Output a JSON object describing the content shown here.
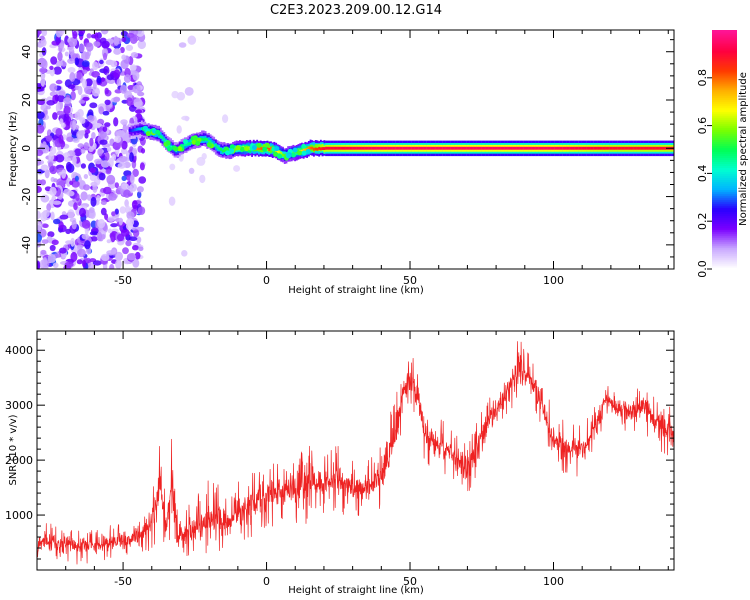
{
  "title": "C2E3.2023.209.00.12.G14",
  "colors": {
    "snr_line": "#ee2222",
    "ridge_core": "#dd2222",
    "frame": "#000000",
    "background": "#ffffff"
  },
  "chart_data": [
    {
      "type": "heatmap",
      "title": "",
      "xlabel": "Height of straight line (km)",
      "ylabel": "Frequency (Hz)",
      "xlim": [
        -80,
        142
      ],
      "ylim": [
        -50,
        49
      ],
      "x_ticks": [
        -50,
        0,
        50,
        100
      ],
      "y_ticks": [
        -40,
        -20,
        0,
        20,
        40
      ],
      "grid": false,
      "colorbar": {
        "label": "Normalized spectral amplitude",
        "range": [
          0.0,
          1.0
        ],
        "ticks": [
          "0.0",
          "0.2",
          "0.4",
          "0.6",
          "0.8"
        ],
        "colormap": [
          "#ffffff",
          "#c9a8ff",
          "#7a00ff",
          "#2a00ff",
          "#00b4ff",
          "#00ffd0",
          "#00ff55",
          "#7aff00",
          "#ffff00",
          "#ffb000",
          "#ff3a00",
          "#ff0040",
          "#ff1493"
        ]
      },
      "ridge": [
        {
          "x": -48,
          "y": 7,
          "amp": 0.25
        },
        {
          "x": -44,
          "y": 8,
          "amp": 0.35
        },
        {
          "x": -41,
          "y": 7,
          "amp": 0.5
        },
        {
          "x": -38,
          "y": 6,
          "amp": 0.5
        },
        {
          "x": -35,
          "y": 2,
          "amp": 0.45
        },
        {
          "x": -32,
          "y": -1,
          "amp": 0.4
        },
        {
          "x": -29,
          "y": 1,
          "amp": 0.45
        },
        {
          "x": -26,
          "y": 3,
          "amp": 0.5
        },
        {
          "x": -22,
          "y": 4,
          "amp": 0.5
        },
        {
          "x": -19,
          "y": 2,
          "amp": 0.45
        },
        {
          "x": -16,
          "y": -1,
          "amp": 0.5
        },
        {
          "x": -13,
          "y": -1,
          "amp": 0.55
        },
        {
          "x": -10,
          "y": 0,
          "amp": 0.6
        },
        {
          "x": -5,
          "y": 0,
          "amp": 0.75
        },
        {
          "x": 0,
          "y": 0,
          "amp": 0.85
        },
        {
          "x": 3,
          "y": -1,
          "amp": 0.7
        },
        {
          "x": 6,
          "y": -3,
          "amp": 0.55
        },
        {
          "x": 9,
          "y": -2,
          "amp": 0.6
        },
        {
          "x": 12,
          "y": -1,
          "amp": 0.7
        },
        {
          "x": 15,
          "y": 0,
          "amp": 0.8
        },
        {
          "x": 20,
          "y": 0,
          "amp": 0.9
        },
        {
          "x": 40,
          "y": 0,
          "amp": 0.95
        },
        {
          "x": 60,
          "y": 0,
          "amp": 0.95
        },
        {
          "x": 80,
          "y": 0,
          "amp": 0.95
        },
        {
          "x": 100,
          "y": 0,
          "amp": 0.95
        },
        {
          "x": 120,
          "y": 0,
          "amp": 0.9
        },
        {
          "x": 142,
          "y": 0,
          "amp": 0.9
        }
      ],
      "noise_regions": [
        {
          "x": [
            -80,
            -43
          ],
          "y": [
            -50,
            49
          ],
          "level": 0.3
        },
        {
          "x": [
            -33,
            -26
          ],
          "y": [
            -50,
            49
          ],
          "level": 0.08
        },
        {
          "x": [
            -25,
            -10
          ],
          "y": [
            -20,
            35
          ],
          "level": 0.05
        }
      ]
    },
    {
      "type": "line",
      "title": "",
      "xlabel": "Height of straight line (km)",
      "ylabel": "SNR (10 * v/v)",
      "xlim": [
        -80,
        142
      ],
      "ylim": [
        0,
        4350
      ],
      "x_ticks": [
        -50,
        0,
        50,
        100
      ],
      "y_ticks": [
        1000,
        2000,
        3000,
        4000
      ],
      "grid": false,
      "series": [
        {
          "color": "#ee2222",
          "envelope": [
            {
              "x": -80,
              "low": 100,
              "high": 900
            },
            {
              "x": -75,
              "low": 100,
              "high": 850
            },
            {
              "x": -70,
              "low": 100,
              "high": 800
            },
            {
              "x": -65,
              "low": 100,
              "high": 800
            },
            {
              "x": -60,
              "low": 120,
              "high": 750
            },
            {
              "x": -55,
              "low": 120,
              "high": 800
            },
            {
              "x": -50,
              "low": 150,
              "high": 900
            },
            {
              "x": -45,
              "low": 200,
              "high": 1000
            },
            {
              "x": -40,
              "low": 250,
              "high": 1400
            },
            {
              "x": -37,
              "low": 600,
              "high": 2600
            },
            {
              "x": -35,
              "low": 200,
              "high": 1200
            },
            {
              "x": -33,
              "low": 700,
              "high": 2600
            },
            {
              "x": -31,
              "low": 250,
              "high": 1000
            },
            {
              "x": -25,
              "low": 200,
              "high": 1300
            },
            {
              "x": -20,
              "low": 250,
              "high": 1700
            },
            {
              "x": -15,
              "low": 250,
              "high": 1500
            },
            {
              "x": -10,
              "low": 400,
              "high": 1600
            },
            {
              "x": -5,
              "low": 600,
              "high": 1800
            },
            {
              "x": 0,
              "low": 700,
              "high": 2000
            },
            {
              "x": 5,
              "low": 800,
              "high": 2100
            },
            {
              "x": 10,
              "low": 700,
              "high": 2100
            },
            {
              "x": 15,
              "low": 800,
              "high": 2400
            },
            {
              "x": 20,
              "low": 1000,
              "high": 2200
            },
            {
              "x": 25,
              "low": 1000,
              "high": 2300
            },
            {
              "x": 30,
              "low": 900,
              "high": 2000
            },
            {
              "x": 35,
              "low": 1000,
              "high": 2000
            },
            {
              "x": 40,
              "low": 1100,
              "high": 2300
            },
            {
              "x": 45,
              "low": 1800,
              "high": 3300
            },
            {
              "x": 48,
              "low": 2800,
              "high": 3700
            },
            {
              "x": 50,
              "low": 3000,
              "high": 4000
            },
            {
              "x": 53,
              "low": 2600,
              "high": 3700
            },
            {
              "x": 55,
              "low": 1900,
              "high": 3000
            },
            {
              "x": 60,
              "low": 1800,
              "high": 2800
            },
            {
              "x": 65,
              "low": 1600,
              "high": 2600
            },
            {
              "x": 70,
              "low": 1300,
              "high": 2300
            },
            {
              "x": 75,
              "low": 2000,
              "high": 3000
            },
            {
              "x": 80,
              "low": 2500,
              "high": 3300
            },
            {
              "x": 85,
              "low": 2900,
              "high": 3800
            },
            {
              "x": 88,
              "low": 3000,
              "high": 4300
            },
            {
              "x": 92,
              "low": 3000,
              "high": 4000
            },
            {
              "x": 95,
              "low": 2700,
              "high": 3600
            },
            {
              "x": 100,
              "low": 1900,
              "high": 2900
            },
            {
              "x": 105,
              "low": 1700,
              "high": 2700
            },
            {
              "x": 110,
              "low": 1700,
              "high": 2700
            },
            {
              "x": 115,
              "low": 2200,
              "high": 3100
            },
            {
              "x": 118,
              "low": 2800,
              "high": 3500
            },
            {
              "x": 122,
              "low": 2600,
              "high": 3300
            },
            {
              "x": 127,
              "low": 2500,
              "high": 3300
            },
            {
              "x": 132,
              "low": 2500,
              "high": 3400
            },
            {
              "x": 135,
              "low": 2200,
              "high": 3200
            },
            {
              "x": 142,
              "low": 1900,
              "high": 3000
            }
          ]
        }
      ]
    }
  ]
}
